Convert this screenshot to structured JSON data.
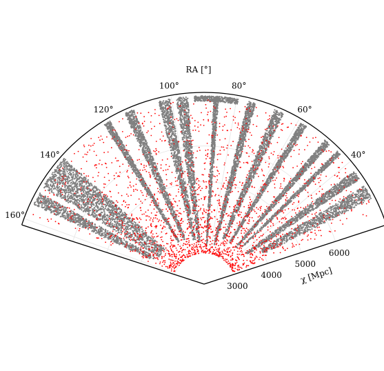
{
  "chart_data": {
    "type": "scatter",
    "projection": "polar-wedge",
    "theta_label": "RA [°]",
    "r_label": "χ [Mpc]",
    "theta_range_deg": [
      18,
      162
    ],
    "r_range": [
      3000,
      7500
    ],
    "theta_ticks": [
      "40°",
      "60°",
      "80°",
      "100°",
      "120°",
      "140°",
      "160°"
    ],
    "r_ticks": [
      "3000",
      "4000",
      "5000",
      "6000"
    ],
    "grid": true,
    "series": [
      {
        "color": "#808080",
        "marker": "dot",
        "description_role": "dense survey footprint",
        "bands": [
          {
            "theta_deg": [
              27,
              31.5
            ],
            "r": [
              4000,
              7400
            ]
          },
          {
            "theta_deg": [
              34,
              37
            ],
            "r": [
              3600,
              7400
            ]
          },
          {
            "theta_deg": [
              43.5,
              45
            ],
            "r": [
              3600,
              7400
            ]
          },
          {
            "theta_deg": [
              48,
              50
            ],
            "r": [
              3500,
              7400
            ]
          },
          {
            "theta_deg": [
              57,
              59
            ],
            "r": [
              3500,
              7400
            ]
          },
          {
            "theta_deg": [
              65,
              68
            ],
            "r": [
              3500,
              7400
            ]
          },
          {
            "theta_deg": [
              74,
              76.5
            ],
            "r": [
              3200,
              7400
            ]
          },
          {
            "theta_deg": [
              79.5,
              93
            ],
            "r": [
              7250,
              7400
            ]
          },
          {
            "theta_deg": [
              85.5,
              87
            ],
            "r": [
              3200,
              7400
            ]
          },
          {
            "theta_deg": [
              95,
              98.5
            ],
            "r": [
              3300,
              7400
            ]
          },
          {
            "theta_deg": [
              100.5,
              104
            ],
            "r": [
              3400,
              7400
            ]
          },
          {
            "theta_deg": [
              112,
              115
            ],
            "r": [
              3500,
              7400
            ]
          },
          {
            "theta_deg": [
              120,
              122
            ],
            "r": [
              3500,
              7400
            ]
          },
          {
            "theta_deg": [
              138,
              143
            ],
            "r": [
              3600,
              7400
            ]
          },
          {
            "theta_deg": [
              143,
              149
            ],
            "r": [
              3600,
              7400
            ]
          },
          {
            "theta_deg": [
              151,
              155
            ],
            "r": [
              3700,
              7400
            ]
          }
        ]
      },
      {
        "color": "#ff0000",
        "marker": "dot",
        "description_role": "sparse sample",
        "count_approx": 2200,
        "theta_deg": [
          22,
          158
        ],
        "r": [
          3000,
          7300
        ]
      }
    ]
  }
}
